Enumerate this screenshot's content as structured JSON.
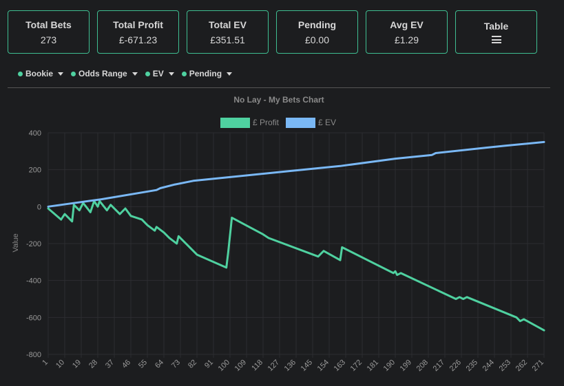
{
  "stats": [
    {
      "title": "Total Bets",
      "value": "273"
    },
    {
      "title": "Total Profit",
      "value": "£-671.23"
    },
    {
      "title": "Total EV",
      "value": "£351.51"
    },
    {
      "title": "Pending",
      "value": "£0.00"
    },
    {
      "title": "Avg EV",
      "value": "£1.29"
    },
    {
      "title": "Table",
      "icon": "list-icon"
    }
  ],
  "filters": [
    "Bookie",
    "Odds Range",
    "EV",
    "Pending"
  ],
  "colors": {
    "accent": "#3fbf92",
    "profit": "#4fd1a0",
    "ev": "#7ab8f5"
  },
  "chart_data": {
    "type": "line",
    "title": "No Lay - My Bets Chart",
    "ylabel": "Value",
    "ylim": [
      -800,
      400
    ],
    "yticks": [
      400,
      200,
      0,
      -200,
      -400,
      -600,
      -800
    ],
    "xlim": [
      1,
      271
    ],
    "xticks": [
      1,
      10,
      19,
      28,
      37,
      46,
      55,
      64,
      73,
      82,
      91,
      100,
      109,
      118,
      127,
      136,
      145,
      154,
      163,
      172,
      181,
      190,
      199,
      208,
      217,
      226,
      235,
      244,
      253,
      262,
      271
    ],
    "legend": "top-center",
    "grid": true,
    "series": [
      {
        "name": "£ Profit",
        "color": "#4fd1a0",
        "points": [
          [
            1,
            -10
          ],
          [
            8,
            -70
          ],
          [
            10,
            -40
          ],
          [
            14,
            -80
          ],
          [
            15,
            10
          ],
          [
            18,
            -20
          ],
          [
            20,
            20
          ],
          [
            24,
            -30
          ],
          [
            26,
            30
          ],
          [
            28,
            0
          ],
          [
            29,
            30
          ],
          [
            33,
            -20
          ],
          [
            35,
            10
          ],
          [
            40,
            -40
          ],
          [
            43,
            -10
          ],
          [
            46,
            -50
          ],
          [
            52,
            -70
          ],
          [
            55,
            -100
          ],
          [
            59,
            -130
          ],
          [
            60,
            -110
          ],
          [
            64,
            -140
          ],
          [
            67,
            -170
          ],
          [
            71,
            -200
          ],
          [
            72,
            -160
          ],
          [
            77,
            -210
          ],
          [
            82,
            -260
          ],
          [
            98,
            -330
          ],
          [
            99,
            -250
          ],
          [
            101,
            -60
          ],
          [
            118,
            -150
          ],
          [
            121,
            -170
          ],
          [
            148,
            -270
          ],
          [
            151,
            -240
          ],
          [
            160,
            -290
          ],
          [
            161,
            -220
          ],
          [
            189,
            -360
          ],
          [
            190,
            -350
          ],
          [
            191,
            -370
          ],
          [
            193,
            -360
          ],
          [
            223,
            -500
          ],
          [
            225,
            -490
          ],
          [
            227,
            -500
          ],
          [
            229,
            -490
          ],
          [
            256,
            -600
          ],
          [
            258,
            -620
          ],
          [
            260,
            -610
          ],
          [
            271,
            -670
          ]
        ]
      },
      {
        "name": "£ EV",
        "color": "#7ab8f5",
        "points": [
          [
            1,
            0
          ],
          [
            30,
            40
          ],
          [
            60,
            90
          ],
          [
            62,
            100
          ],
          [
            70,
            120
          ],
          [
            80,
            140
          ],
          [
            100,
            160
          ],
          [
            130,
            190
          ],
          [
            160,
            220
          ],
          [
            190,
            260
          ],
          [
            210,
            280
          ],
          [
            212,
            290
          ],
          [
            240,
            320
          ],
          [
            250,
            330
          ],
          [
            271,
            350
          ]
        ]
      }
    ]
  }
}
